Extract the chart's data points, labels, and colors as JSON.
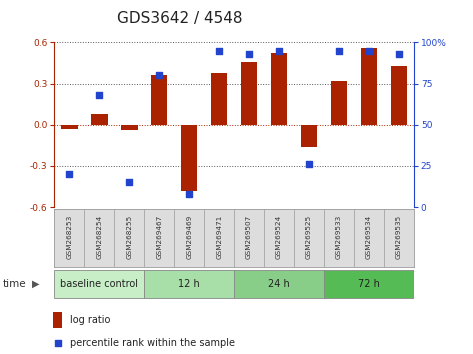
{
  "title": "GDS3642 / 4548",
  "samples": [
    "GSM268253",
    "GSM268254",
    "GSM268255",
    "GSM269467",
    "GSM269469",
    "GSM269471",
    "GSM269507",
    "GSM269524",
    "GSM269525",
    "GSM269533",
    "GSM269534",
    "GSM269535"
  ],
  "log_ratio": [
    -0.03,
    0.08,
    -0.04,
    0.36,
    -0.48,
    0.38,
    0.46,
    0.52,
    -0.16,
    0.32,
    0.56,
    0.43
  ],
  "percentile": [
    20,
    68,
    15,
    80,
    8,
    95,
    93,
    95,
    26,
    95,
    95,
    93
  ],
  "groups": [
    {
      "label": "baseline control",
      "start": 0,
      "end": 3,
      "color": "#c8eec8"
    },
    {
      "label": "12 h",
      "start": 3,
      "end": 6,
      "color": "#a8dea8"
    },
    {
      "label": "24 h",
      "start": 6,
      "end": 9,
      "color": "#88ce88"
    },
    {
      "label": "72 h",
      "start": 9,
      "end": 12,
      "color": "#55bb55"
    }
  ],
  "ylim": [
    -0.6,
    0.6
  ],
  "yticks_left": [
    -0.6,
    -0.3,
    0.0,
    0.3,
    0.6
  ],
  "yticks_right": [
    0,
    25,
    50,
    75,
    100
  ],
  "bar_color": "#aa2200",
  "dot_color": "#2244cc",
  "bg_color": "#ffffff",
  "plot_bg": "#ffffff",
  "title_fontsize": 11,
  "tick_fontsize": 6.5,
  "sample_fontsize": 5.2,
  "group_fontsize": 7,
  "legend_fontsize": 7
}
